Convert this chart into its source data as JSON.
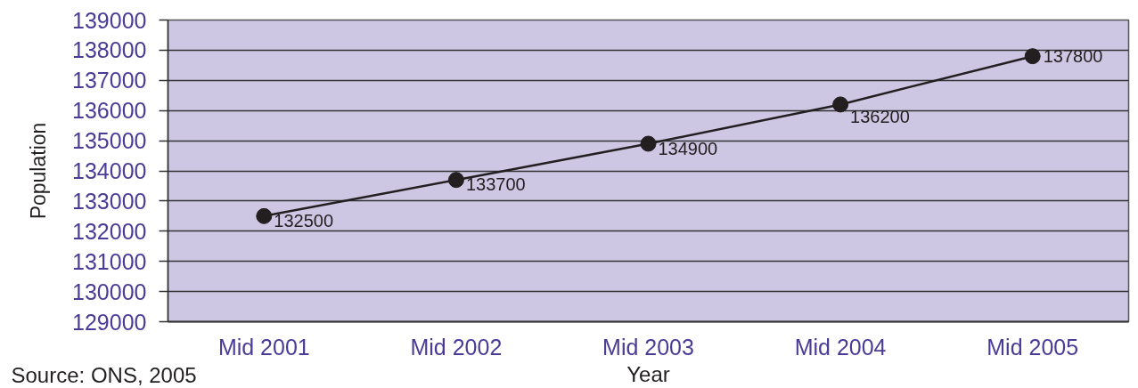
{
  "chart_data": {
    "type": "line",
    "xlabel": "Year",
    "ylabel": "Population",
    "categories": [
      "Mid 2001",
      "Mid 2002",
      "Mid 2003",
      "Mid 2004",
      "Mid 2005"
    ],
    "series": [
      {
        "color": "#231f20",
        "values": [
          132500,
          133700,
          134900,
          136200,
          137800
        ]
      }
    ],
    "ylim": [
      129000,
      139000
    ],
    "yticks": [
      129000,
      130000,
      131000,
      132000,
      133000,
      134000,
      135000,
      136000,
      137000,
      138000,
      139000
    ],
    "grid": "y",
    "marker": "circle",
    "line_style": "solid",
    "data_labels": true,
    "annotations": [
      "Source: ONS, 2005"
    ]
  }
}
